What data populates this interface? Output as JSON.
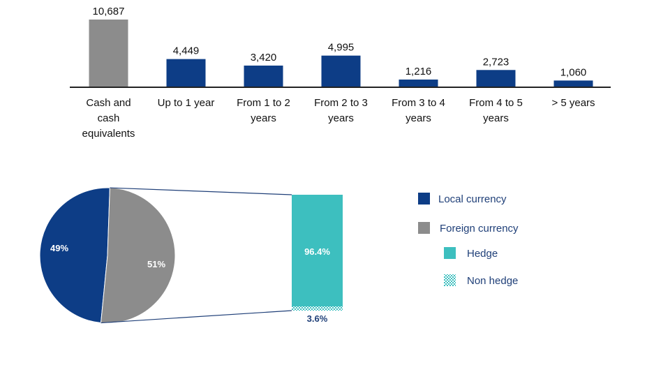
{
  "chart_data": [
    {
      "type": "bar",
      "categories": [
        [
          "Cash and",
          "cash",
          "equivalents"
        ],
        [
          "Up to 1 year"
        ],
        [
          "From 1 to 2",
          "years"
        ],
        [
          "From 2 to 3",
          "years"
        ],
        [
          "From 3 to 4",
          "years"
        ],
        [
          "From 4 to 5",
          "years"
        ],
        [
          "> 5 years"
        ]
      ],
      "values": [
        10687,
        4449,
        3420,
        4995,
        1216,
        2723,
        1060
      ],
      "value_labels": [
        "10,687",
        "4,449",
        "3,420",
        "4,995",
        "1,216",
        "2,723",
        "1,060"
      ],
      "bar_colors": [
        "#8c8c8c",
        "#0d3d86",
        "#0d3d86",
        "#0d3d86",
        "#0d3d86",
        "#0d3d86",
        "#0d3d86"
      ],
      "ylim": [
        0,
        10687
      ],
      "grid": false
    },
    {
      "type": "pie",
      "slices": [
        {
          "label": "Local currency",
          "value": 49,
          "value_label": "49%",
          "color": "#0d3d86"
        },
        {
          "label": "Foreign currency",
          "value": 51,
          "value_label": "51%",
          "color": "#8c8c8c"
        }
      ],
      "breakdown": {
        "of": "Foreign currency",
        "type": "stacked-bar",
        "segments": [
          {
            "label": "Hedge",
            "value": 96.4,
            "value_label": "96.4%",
            "color": "#3dbfbf"
          },
          {
            "label": "Non hedge",
            "value": 3.6,
            "value_label": "3.6%",
            "color": "#3dbfbf",
            "pattern": "checker"
          }
        ]
      },
      "legend": {
        "placement": "right",
        "items": [
          {
            "label": "Local currency",
            "color": "#0d3d86",
            "indent": false
          },
          {
            "label": "Foreign currency",
            "color": "#8c8c8c",
            "indent": false
          },
          {
            "label": "Hedge",
            "color": "#3dbfbf",
            "indent": true
          },
          {
            "label": "Non hedge",
            "color": "#3dbfbf",
            "indent": true,
            "pattern": "checker"
          }
        ]
      }
    }
  ]
}
